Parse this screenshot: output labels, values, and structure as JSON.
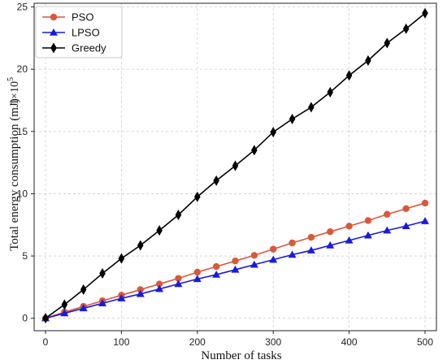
{
  "chart_data": {
    "type": "line",
    "xlabel": "Number of tasks",
    "ylabel": "Total energy consumption (mJ)",
    "y_scale_label": "1×10",
    "y_scale_exponent": "5",
    "xlim": [
      -15,
      515
    ],
    "ylim": [
      -1,
      25.3
    ],
    "x_ticks": [
      0,
      100,
      200,
      300,
      400,
      500
    ],
    "y_ticks": [
      0,
      5,
      10,
      15,
      20,
      25
    ],
    "grid": true,
    "legend_position": "top-left",
    "x": [
      0,
      25,
      50,
      75,
      100,
      125,
      150,
      175,
      200,
      225,
      250,
      275,
      300,
      325,
      350,
      375,
      400,
      425,
      450,
      475,
      500
    ],
    "series": [
      {
        "name": "PSO",
        "color": "#d9583b",
        "marker": "circle",
        "values": [
          0.0,
          0.5,
          0.95,
          1.4,
          1.85,
          2.3,
          2.75,
          3.2,
          3.7,
          4.15,
          4.6,
          5.05,
          5.55,
          6.05,
          6.5,
          6.95,
          7.4,
          7.85,
          8.35,
          8.8,
          9.25
        ]
      },
      {
        "name": "LPSO",
        "color": "#1a1adf",
        "marker": "triangle",
        "values": [
          0.0,
          0.4,
          0.8,
          1.2,
          1.6,
          1.95,
          2.35,
          2.75,
          3.15,
          3.5,
          3.9,
          4.3,
          4.7,
          5.1,
          5.45,
          5.85,
          6.25,
          6.65,
          7.05,
          7.4,
          7.8
        ]
      },
      {
        "name": "Greedy",
        "color": "#000000",
        "marker": "diamond",
        "values": [
          0.0,
          1.1,
          2.3,
          3.6,
          4.8,
          5.85,
          7.05,
          8.3,
          9.75,
          11.05,
          12.25,
          13.5,
          14.95,
          16.0,
          16.95,
          18.15,
          19.5,
          20.7,
          22.1,
          23.25,
          24.5
        ]
      }
    ]
  }
}
